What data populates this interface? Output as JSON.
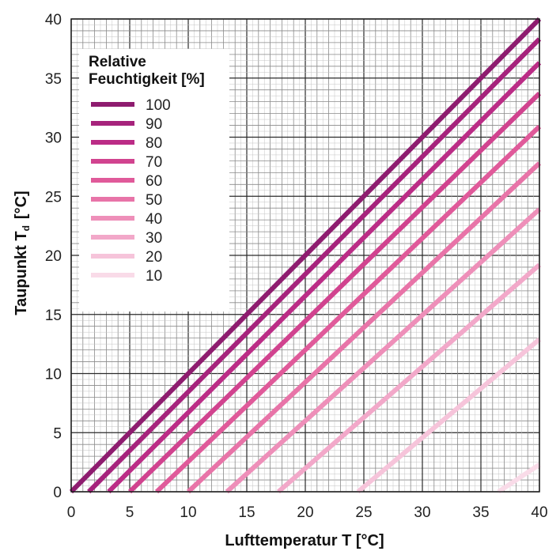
{
  "chart_data": {
    "type": "line",
    "xlabel": "Lufttemperatur T [°C]",
    "ylabel_main": "Taupunkt T",
    "ylabel_sub": "d",
    "ylabel_unit": "[°C]",
    "xlim": [
      0,
      40
    ],
    "ylim": [
      0,
      40
    ],
    "xticks": [
      0,
      5,
      10,
      15,
      20,
      25,
      30,
      35,
      40
    ],
    "yticks": [
      0,
      5,
      10,
      15,
      20,
      25,
      30,
      35,
      40
    ],
    "grid": true,
    "legend": {
      "title_line1": "Relative",
      "title_line2": "Feuchtigkeit [%]",
      "placement": "top-left"
    },
    "series": [
      {
        "name": "100",
        "color": "#8e1c6f",
        "x": [
          0,
          40
        ],
        "y": [
          0,
          40
        ]
      },
      {
        "name": "90",
        "color": "#a6237c",
        "x": [
          1.5,
          40
        ],
        "y": [
          0,
          38.3
        ]
      },
      {
        "name": "80",
        "color": "#bb2c86",
        "x": [
          3.2,
          40
        ],
        "y": [
          0,
          36.3
        ]
      },
      {
        "name": "70",
        "color": "#d1438f",
        "x": [
          5.0,
          40
        ],
        "y": [
          0,
          33.7
        ]
      },
      {
        "name": "60",
        "color": "#e05a9a",
        "x": [
          7.3,
          40
        ],
        "y": [
          0,
          30.9
        ]
      },
      {
        "name": "50",
        "color": "#e874a8",
        "x": [
          10.0,
          40
        ],
        "y": [
          0,
          27.8
        ]
      },
      {
        "name": "40",
        "color": "#ee8fb9",
        "x": [
          13.3,
          40
        ],
        "y": [
          0,
          23.9
        ]
      },
      {
        "name": "30",
        "color": "#f2a8c9",
        "x": [
          17.7,
          40
        ],
        "y": [
          0,
          19.2
        ]
      },
      {
        "name": "20",
        "color": "#f6c4da",
        "x": [
          24.5,
          40
        ],
        "y": [
          0,
          12.9
        ]
      },
      {
        "name": "10",
        "color": "#f9dbe8",
        "x": [
          36.5,
          40
        ],
        "y": [
          0,
          2.3
        ]
      }
    ]
  }
}
